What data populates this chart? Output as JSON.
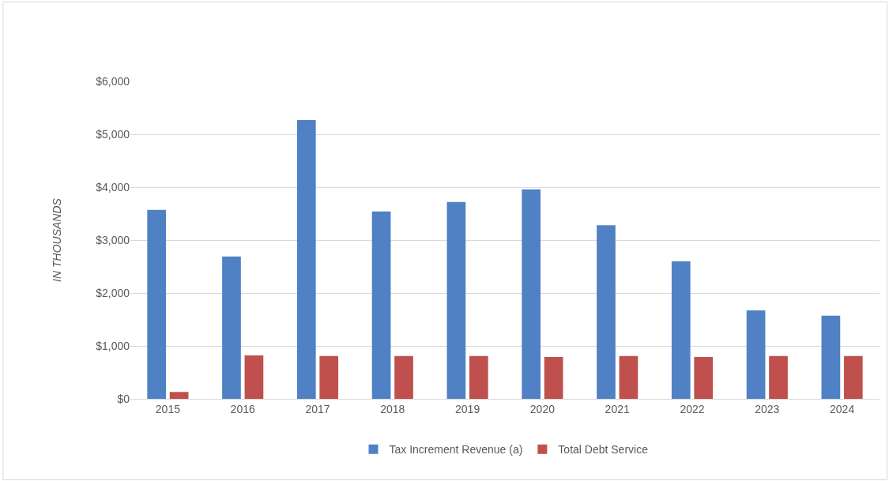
{
  "chart_data": {
    "type": "bar",
    "ylabel": "IN THOUSANDS",
    "categories": [
      "2015",
      "2016",
      "2017",
      "2018",
      "2019",
      "2020",
      "2021",
      "2022",
      "2023",
      "2024"
    ],
    "series": [
      {
        "name": "Tax Increment Revenue (a)",
        "color": "#4f81c4",
        "values": [
          3570,
          2690,
          5270,
          3540,
          3720,
          3960,
          3280,
          2600,
          1670,
          1570
        ]
      },
      {
        "name": "Total Debt Service",
        "color": "#c0504d",
        "values": [
          130,
          820,
          810,
          810,
          810,
          790,
          810,
          790,
          810,
          810
        ]
      }
    ],
    "ylim": [
      0,
      6000
    ],
    "yticks": [
      {
        "value": 0,
        "label": "$0"
      },
      {
        "value": 1000,
        "label": "$1,000"
      },
      {
        "value": 2000,
        "label": "$2,000"
      },
      {
        "value": 3000,
        "label": "$3,000"
      },
      {
        "value": 4000,
        "label": "$4,000"
      },
      {
        "value": 5000,
        "label": "$5,000"
      },
      {
        "value": 6000,
        "label": "$6,000"
      }
    ],
    "grid": "y",
    "legend": "bottom"
  }
}
